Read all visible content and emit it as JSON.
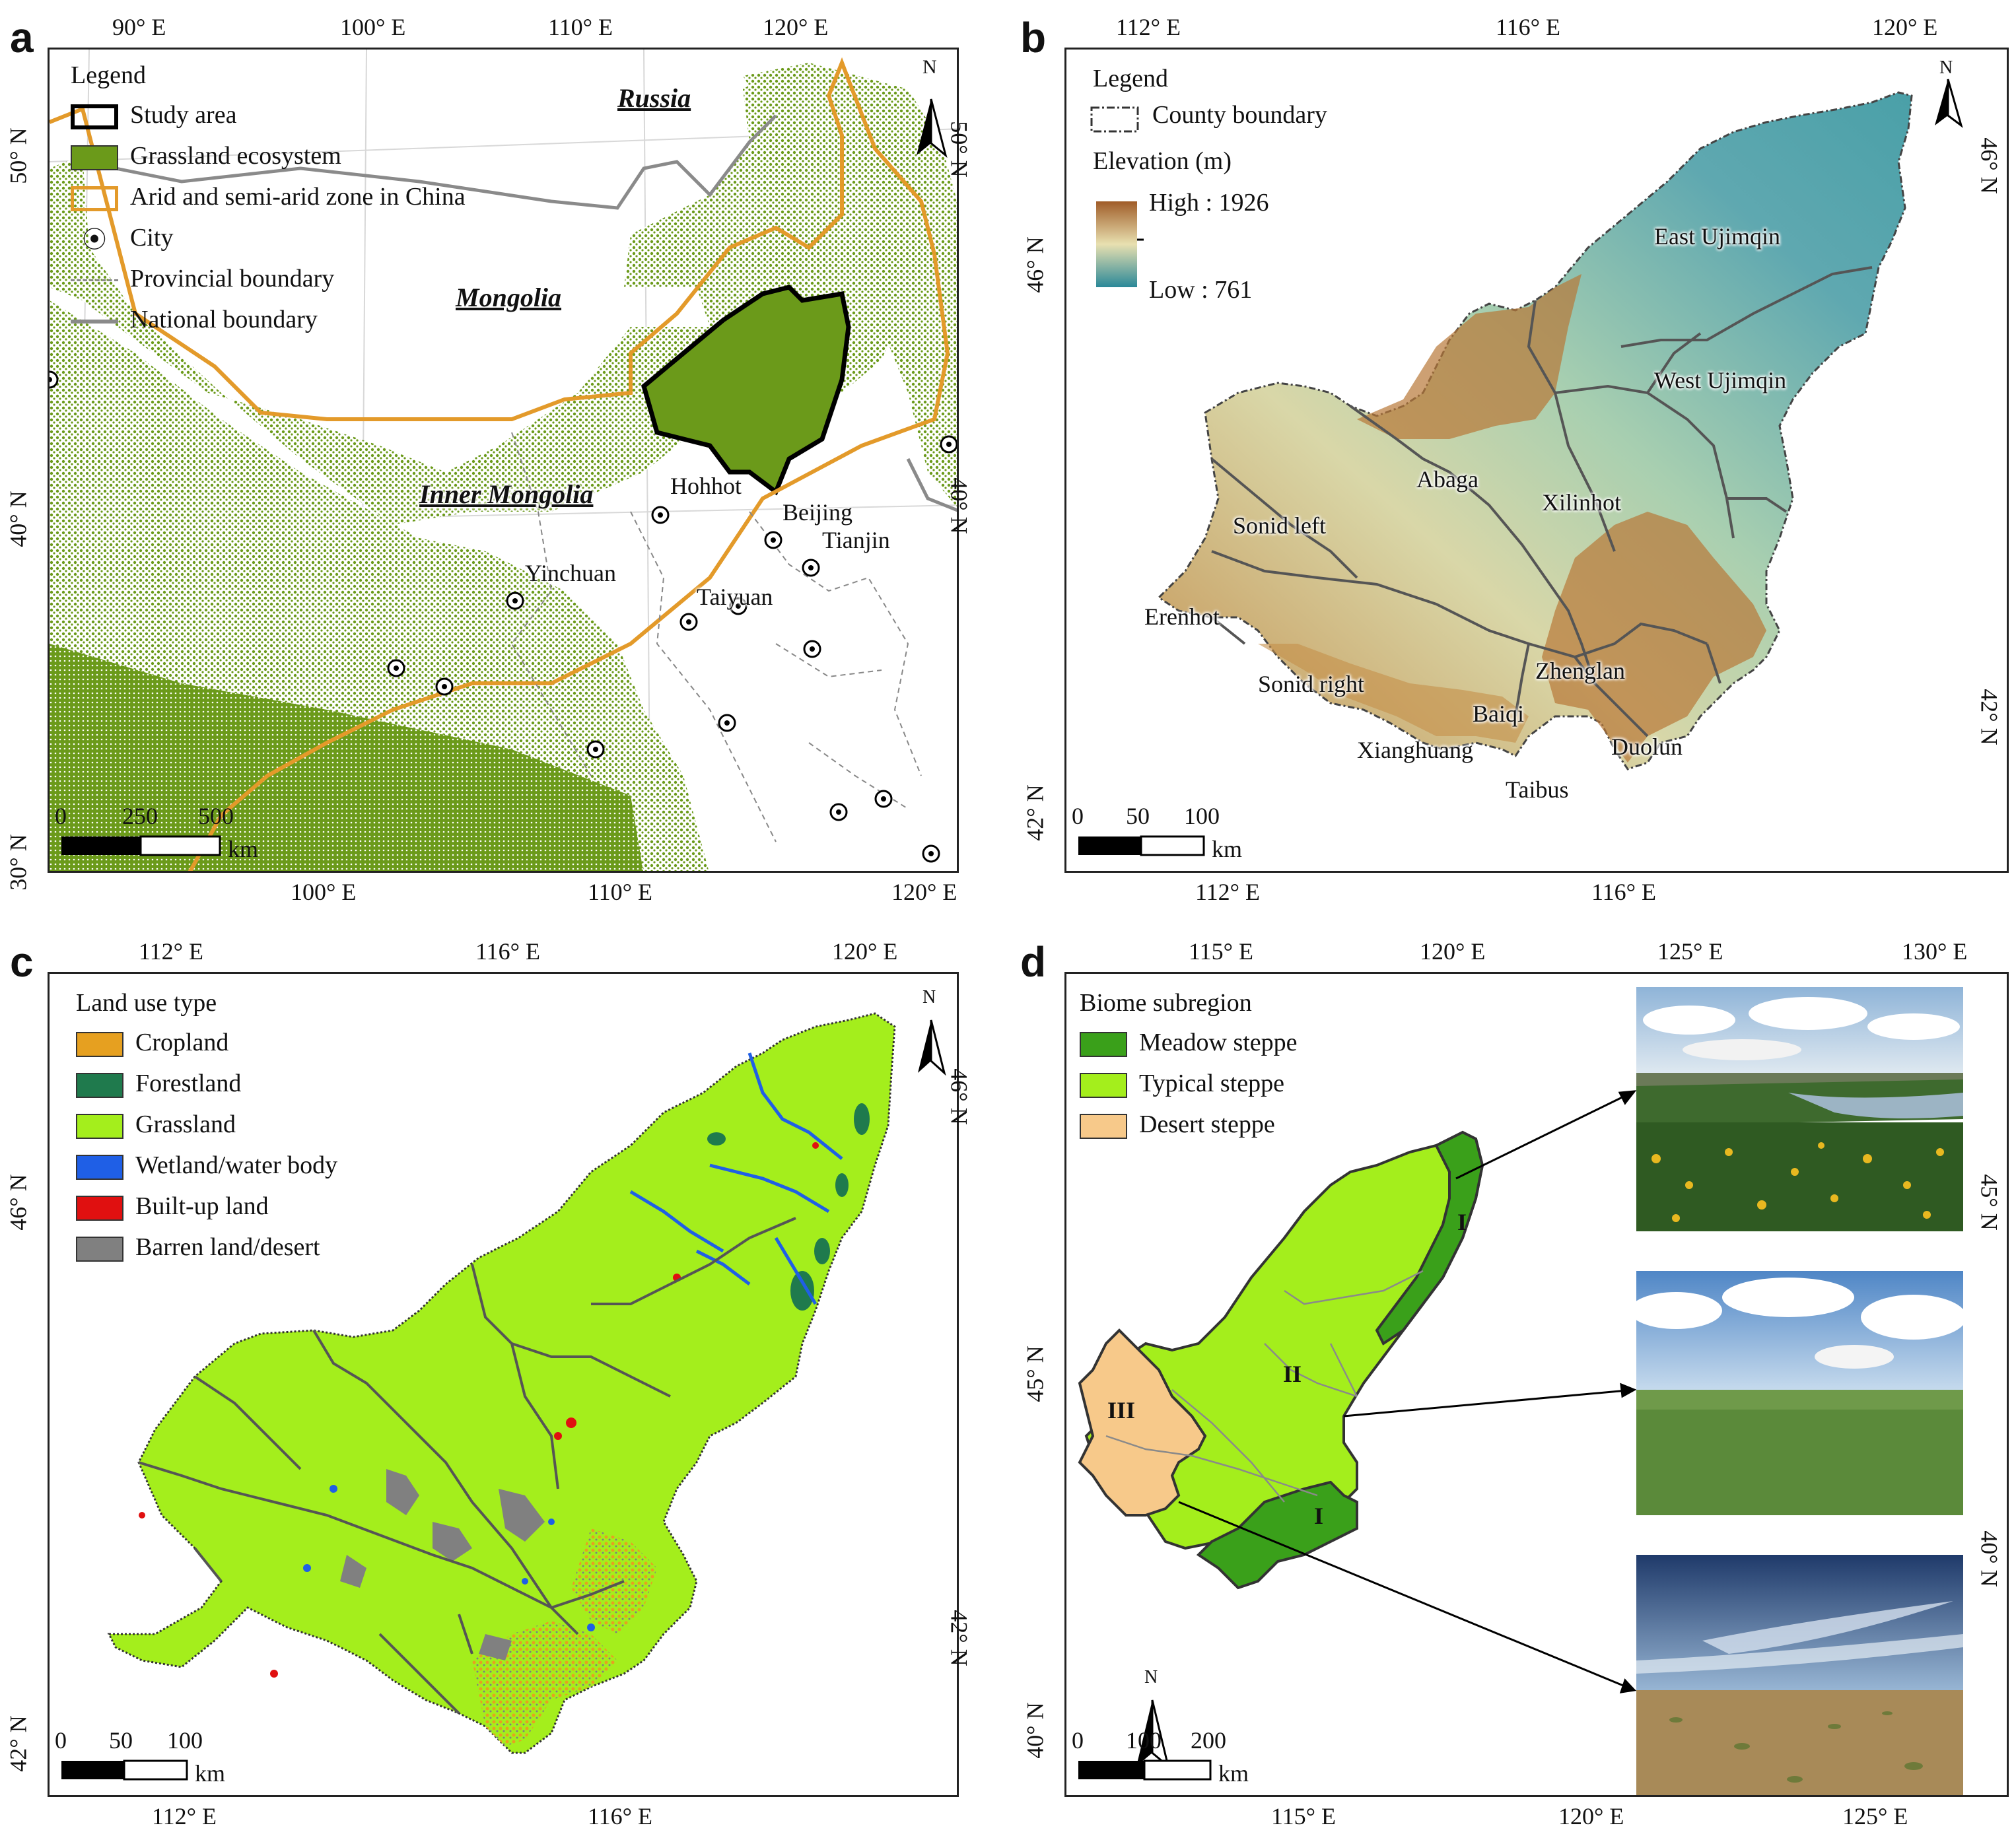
{
  "panels": {
    "a": {
      "label": "a",
      "top_ticks": [
        "90° E",
        "100° E",
        "110° E",
        "120° E"
      ],
      "bottom_ticks": [
        "100° E",
        "110° E",
        "120° E"
      ],
      "left_ticks": [
        "50° N",
        "40° N",
        "30° N"
      ],
      "right_ticks": [
        "50° N",
        "40° N"
      ],
      "legend_title": "Legend",
      "legend_items": [
        {
          "label": "Study area",
          "icon": "study-area-outline",
          "color": "#000000"
        },
        {
          "label": "Grassland ecosystem",
          "icon": "filled-square",
          "color": "#6b9a1a"
        },
        {
          "label": "Arid and semi-arid zone in China",
          "icon": "outline-square",
          "color": "#e39a2a"
        },
        {
          "label": "City",
          "icon": "city-dot"
        },
        {
          "label": "Provincial boundary",
          "icon": "dashed-line"
        },
        {
          "label": "National boundary",
          "icon": "gray-line"
        }
      ],
      "country_labels": [
        "Russia",
        "Mongolia",
        "Inner Mongolia"
      ],
      "cities": [
        "Hohhot",
        "Beijing",
        "Tianjin",
        "Yinchuan",
        "Taiyuan"
      ],
      "scale": {
        "ticks": [
          "0",
          "250",
          "500"
        ],
        "unit": "km"
      },
      "north": "N"
    },
    "b": {
      "label": "b",
      "top_ticks": [
        "112° E",
        "116° E",
        "120° E"
      ],
      "bottom_ticks": [
        "112° E",
        "116° E"
      ],
      "left_ticks": [
        "46° N",
        "42° N"
      ],
      "right_ticks": [
        "46° N",
        "42° N"
      ],
      "legend_title": "Legend",
      "county_boundary": "County boundary",
      "elevation_title": "Elevation (m)",
      "elevation_high": "High : 1926",
      "elevation_low": "Low : 761",
      "counties": [
        "East Ujimqin",
        "West Ujimqin",
        "Abaga",
        "Xilinhot",
        "Sonid left",
        "Erenhot",
        "Sonid right",
        "Zhenglan",
        "Baiqi",
        "Xianghuang",
        "Duolun",
        "Taibus"
      ],
      "scale": {
        "ticks": [
          "0",
          "50",
          "100"
        ],
        "unit": "km"
      },
      "north": "N"
    },
    "c": {
      "label": "c",
      "top_ticks": [
        "112° E",
        "116° E",
        "120° E"
      ],
      "bottom_ticks": [
        "112° E",
        "116° E"
      ],
      "left_ticks": [
        "46° N",
        "42° N"
      ],
      "right_ticks": [
        "46° N",
        "42° N"
      ],
      "legend_title": "Land use type",
      "legend_items": [
        {
          "label": "Cropland",
          "color": "#e6a020"
        },
        {
          "label": "Forestland",
          "color": "#1f7a4d"
        },
        {
          "label": "Grassland",
          "color": "#a4ee1c"
        },
        {
          "label": "Wetland/water body",
          "color": "#1f5fe6"
        },
        {
          "label": "Built-up land",
          "color": "#e01010"
        },
        {
          "label": "Barren land/desert",
          "color": "#808080"
        }
      ],
      "scale": {
        "ticks": [
          "0",
          "50",
          "100"
        ],
        "unit": "km"
      },
      "north": "N"
    },
    "d": {
      "label": "d",
      "top_ticks": [
        "115° E",
        "120° E",
        "125° E",
        "130° E"
      ],
      "bottom_ticks": [
        "115° E",
        "120° E",
        "125° E"
      ],
      "left_ticks": [
        "45° N",
        "40° N"
      ],
      "right_ticks": [
        "45° N",
        "40° N"
      ],
      "legend_title": "Biome subregion",
      "legend_items": [
        {
          "label": "Meadow steppe",
          "color": "#3aa01a"
        },
        {
          "label": "Typical steppe",
          "color": "#a4ee1c"
        },
        {
          "label": "Desert steppe",
          "color": "#f7c98a"
        }
      ],
      "region_labels": [
        "I",
        "II",
        "III",
        "I"
      ],
      "scale": {
        "ticks": [
          "0",
          "100",
          "200"
        ],
        "unit": "km"
      },
      "north": "N"
    }
  }
}
